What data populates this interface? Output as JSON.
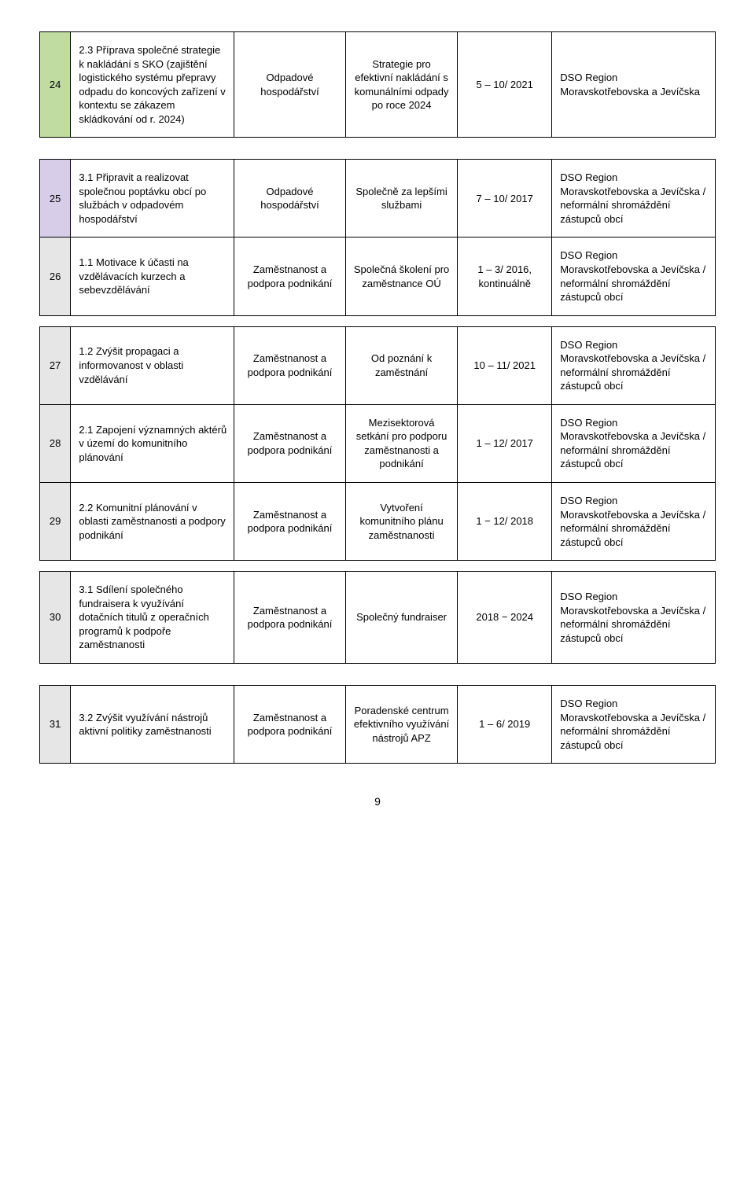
{
  "page_number": "9",
  "rows": [
    {
      "num": "24",
      "num_bg": "bg-green",
      "desc": "2.3 Příprava společné strategie k nakládání s SKO (zajištění logistického systému přepravy odpadu do koncových zařízení v kontextu se zákazem skládkování od r. 2024)",
      "area": "Odpadové hospodářství",
      "output": "Strategie pro efektivní nakládání s komunálními odpady po roce 2024",
      "time": "5 – 10/ 2021",
      "resp": "DSO Region Moravskotřebovska a Jevíčska"
    },
    {
      "num": "25",
      "num_bg": "bg-lav",
      "desc": "3.1 Připravit a realizovat společnou poptávku obcí po službách v odpadovém hospodářství",
      "area": "Odpadové hospodářství",
      "output": "Společně za lepšími službami",
      "time": "7 – 10/ 2017",
      "resp": "DSO Region Moravskotřebovska a Jevíčska / neformální shromáždění zástupců obcí"
    },
    {
      "num": "26",
      "num_bg": "bg-grey",
      "desc": "1.1 Motivace k účasti na vzdělávacích kurzech a sebevzdělávání",
      "area": "Zaměstnanost a podpora podnikání",
      "output": "Společná školení pro zaměstnance OÚ",
      "time": "1 – 3/ 2016, kontinuálně",
      "resp": "DSO Region Moravskotřebovska a Jevíčska / neformální shromáždění zástupců obcí"
    },
    {
      "num": "27",
      "num_bg": "bg-grey",
      "desc": "1.2 Zvýšit propagaci a informovanost v oblasti vzdělávání",
      "area": "Zaměstnanost a podpora podnikání",
      "output": "Od poznání k zaměstnání",
      "time": "10 – 11/ 2021",
      "resp": "DSO Region Moravskotřebovska a Jevíčska / neformální shromáždění zástupců obcí"
    },
    {
      "num": "28",
      "num_bg": "bg-grey",
      "desc": "2.1 Zapojení významných aktérů v území do komunitního plánování",
      "area": "Zaměstnanost a podpora podnikání",
      "output": "Mezisektorová setkání pro podporu zaměstnanosti a podnikání",
      "time": "1 – 12/ 2017",
      "resp": "DSO Region Moravskotřebovska a Jevíčska / neformální shromáždění zástupců obcí"
    },
    {
      "num": "29",
      "num_bg": "bg-grey",
      "desc": "2.2 Komunitní plánování v oblasti zaměstnanosti a podpory podnikání",
      "area": "Zaměstnanost a podpora podnikání",
      "output": "Vytvoření komunitního plánu zaměstnanosti",
      "time": "1 − 12/ 2018",
      "resp": "DSO Region Moravskotřebovska a Jevíčska / neformální shromáždění zástupců obcí"
    },
    {
      "num": "30",
      "num_bg": "bg-grey",
      "desc": "3.1 Sdílení společného fundraisera k využívání dotačních titulů z operačních programů k podpoře zaměstnanosti",
      "area": "Zaměstnanost a podpora podnikání",
      "output": "Společný fundraiser",
      "time": "2018 − 2024",
      "resp": "DSO Region Moravskotřebovska a Jevíčska / neformální shromáždění zástupců obcí"
    },
    {
      "num": "31",
      "num_bg": "bg-grey",
      "desc": "3.2 Zvýšit využívání nástrojů aktivní politiky zaměstnanosti",
      "area": "Zaměstnanost a podpora podnikání",
      "output": "Poradenské centrum efektivního využívání nástrojů APZ",
      "time": "1 – 6/ 2019",
      "resp": "DSO Region Moravskotřebovska a Jevíčska / neformální shromáždění zástupců obcí"
    }
  ],
  "gaps_after": {
    "0": "big",
    "2": "small",
    "5": "small",
    "6": "big"
  }
}
